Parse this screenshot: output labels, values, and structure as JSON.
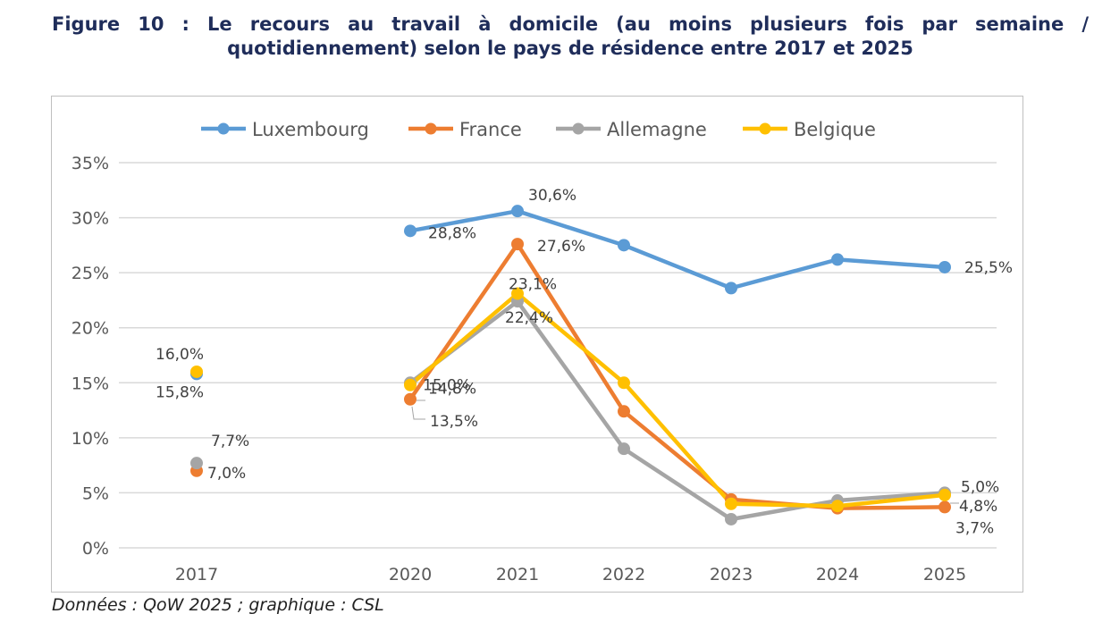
{
  "figure": {
    "title_line1": "Figure 10 : Le recours au travail à domicile (au moins plusieurs fois par semaine /",
    "title_line2": "quotidiennement) selon le pays de résidence entre 2017 et 2025",
    "source": "Données : QoW 2025 ; graphique : CSL"
  },
  "chart_data": {
    "type": "line",
    "title": "Le recours au travail à domicile (au moins plusieurs fois par semaine / quotidiennement) selon le pays de résidence entre 2017 et 2025",
    "xlabel": "",
    "ylabel": "",
    "categories": [
      "2017",
      "2020",
      "2021",
      "2022",
      "2023",
      "2024",
      "2025"
    ],
    "y_ticks": [
      "0%",
      "5%",
      "10%",
      "15%",
      "20%",
      "25%",
      "30%",
      "35%"
    ],
    "ylim": [
      0,
      35
    ],
    "grid": true,
    "legend_position": "top",
    "series": [
      {
        "name": "Luxembourg",
        "color": "#5b9bd5",
        "values": [
          15.8,
          28.8,
          30.6,
          27.5,
          23.6,
          26.2,
          25.5
        ],
        "labels": [
          "15,8%",
          "28,8%",
          "30,6%",
          "",
          "",
          "",
          "25,5%"
        ]
      },
      {
        "name": "France",
        "color": "#ed7d31",
        "values": [
          7.0,
          13.5,
          27.6,
          12.4,
          4.4,
          3.6,
          3.7
        ],
        "labels": [
          "7,0%",
          "13,5%",
          "27,6%",
          "",
          "",
          "",
          "3,7%"
        ]
      },
      {
        "name": "Allemagne",
        "color": "#a5a5a5",
        "values": [
          7.7,
          15.0,
          22.4,
          9.0,
          2.6,
          4.3,
          5.0
        ],
        "labels": [
          "7,7%",
          "15,0%",
          "22,4%",
          "",
          "",
          "",
          "5,0%"
        ]
      },
      {
        "name": "Belgique",
        "color": "#ffc000",
        "values": [
          16.0,
          14.8,
          23.1,
          15.0,
          4.0,
          3.8,
          4.8
        ],
        "labels": [
          "16,0%",
          "14,8%",
          "23,1%",
          "",
          "",
          "",
          "4,8%"
        ]
      }
    ],
    "connected_from_index": 1
  }
}
